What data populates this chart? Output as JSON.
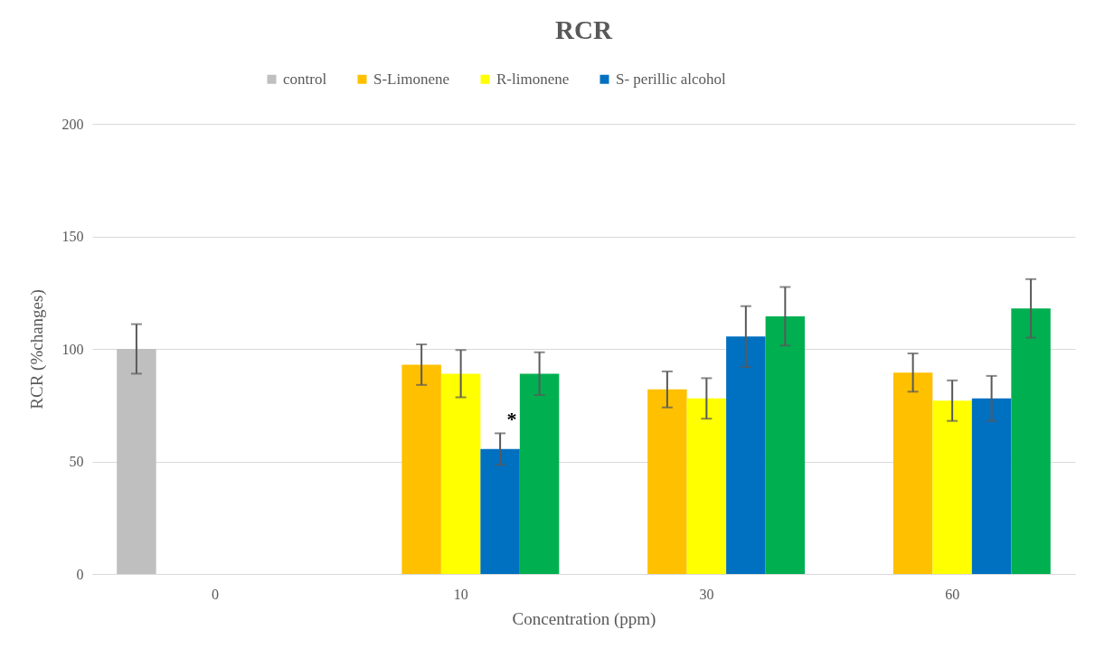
{
  "chart_data": {
    "type": "bar",
    "title": "RCR",
    "xlabel": "Concentration (ppm)",
    "ylabel": "RCR (%changes)",
    "categories": [
      "0",
      "10",
      "30",
      "60"
    ],
    "series": [
      {
        "name": "control",
        "color": "#bfbfbf",
        "values": [
          100,
          null,
          null,
          null
        ],
        "errors": [
          11,
          null,
          null,
          null
        ]
      },
      {
        "name": "S-Limonene",
        "color": "#ffc000",
        "values": [
          null,
          93,
          82,
          89.5
        ],
        "errors": [
          null,
          9,
          8,
          8.5
        ]
      },
      {
        "name": "R-limonene",
        "color": "#ffff00",
        "values": [
          null,
          89,
          78,
          77
        ],
        "errors": [
          null,
          10.5,
          9,
          9
        ]
      },
      {
        "name": "S- perillic alcohol",
        "color": "#0070c0",
        "values": [
          null,
          55.5,
          105.5,
          78
        ],
        "errors": [
          null,
          7,
          13.5,
          10
        ]
      },
      {
        "color": "#00b050",
        "values": [
          null,
          89,
          114.5,
          118
        ],
        "errors": [
          null,
          9.5,
          13,
          13
        ]
      }
    ],
    "annotations": [
      "*"
    ],
    "ylim": [
      0,
      200
    ],
    "yticks": [
      0,
      50,
      100,
      150,
      200
    ],
    "grid": "y",
    "legend": "top"
  }
}
